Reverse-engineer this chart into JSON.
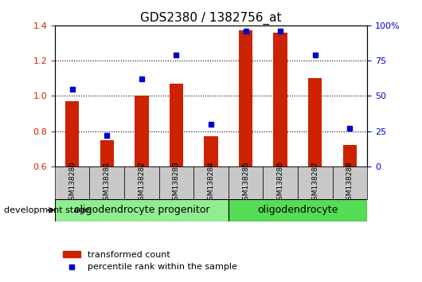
{
  "title": "GDS2380 / 1382756_at",
  "samples": [
    "GSM138280",
    "GSM138281",
    "GSM138282",
    "GSM138283",
    "GSM138284",
    "GSM138285",
    "GSM138286",
    "GSM138287",
    "GSM138288"
  ],
  "transformed_count": [
    0.97,
    0.75,
    1.0,
    1.07,
    0.77,
    1.37,
    1.36,
    1.1,
    0.72
  ],
  "percentile_rank": [
    55,
    22,
    62,
    79,
    30,
    96,
    96,
    79,
    27
  ],
  "ylim_left": [
    0.6,
    1.4
  ],
  "ylim_right": [
    0,
    100
  ],
  "yticks_left": [
    0.6,
    0.8,
    1.0,
    1.2,
    1.4
  ],
  "yticks_right": [
    0,
    25,
    50,
    75,
    100
  ],
  "bar_color": "#CC2200",
  "scatter_color": "#0000CC",
  "bar_width": 0.4,
  "grid_color": "black",
  "group1_label": "oligodendrocyte progenitor",
  "group2_label": "oligodendrocyte",
  "group1_color": "#90EE90",
  "group2_color": "#55DD55",
  "legend_bar_label": "transformed count",
  "legend_scatter_label": "percentile rank within the sample",
  "dev_stage_label": "development stage",
  "tick_label_bg": "#C8C8C8",
  "right_axis_label_color": "#0000CC",
  "left_axis_label_color": "#CC2200",
  "title_fontsize": 11,
  "tick_fontsize": 8,
  "group_label_fontsize": 9,
  "legend_fontsize": 8
}
